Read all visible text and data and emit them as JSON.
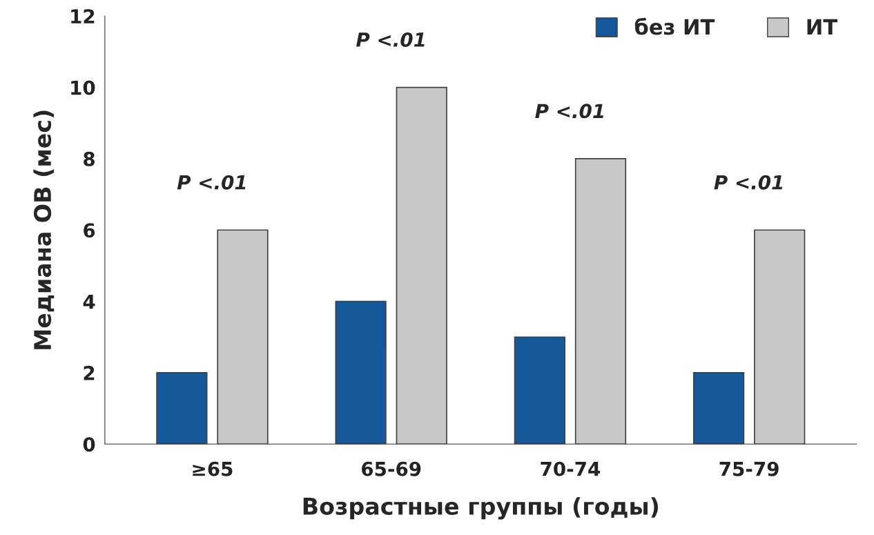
{
  "chart_data": {
    "type": "bar",
    "xlabel": "Возрастные группы (годы)",
    "ylabel": "Медиана ОВ (мес)",
    "categories": [
      "≥65",
      "65-69",
      "70-74",
      "75-79"
    ],
    "series": [
      {
        "name": "без ИТ",
        "color": "#15589a",
        "values": [
          2,
          4,
          3,
          2
        ]
      },
      {
        "name": "ИТ",
        "color": "#c8c8c8",
        "values": [
          6,
          10,
          8,
          6
        ]
      }
    ],
    "ylim": [
      0,
      12
    ],
    "yticks": [
      0,
      2,
      4,
      6,
      8,
      10,
      12
    ],
    "grid": false,
    "legend": "top right",
    "annotations": [
      "P <.01",
      "P <.01",
      "P <.01",
      "P <.01"
    ]
  }
}
